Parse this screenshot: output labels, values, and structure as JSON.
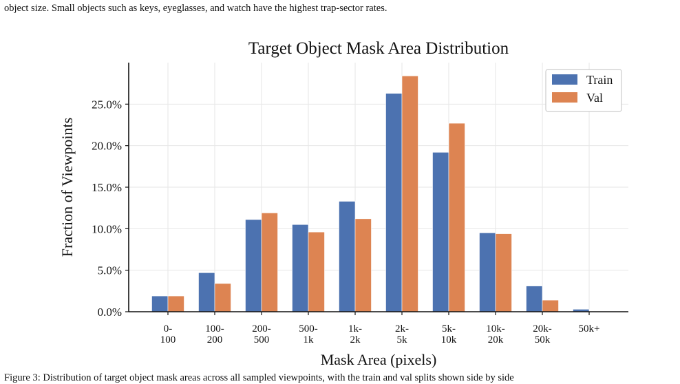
{
  "caption_top": "object size. Small objects such as keys, eyeglasses, and watch have the highest trap-sector rates.",
  "caption_bottom": "Figure 3: Distribution of target object mask areas across all sampled viewpoints, with the train and val splits shown side by side",
  "chart_data": {
    "type": "bar",
    "title": "Target Object Mask Area Distribution",
    "xlabel": "Mask Area (pixels)",
    "ylabel": "Fraction of Viewpoints",
    "categories": [
      [
        "0-",
        "100"
      ],
      [
        "100-",
        "200"
      ],
      [
        "200-",
        "500"
      ],
      [
        "500-",
        "1k"
      ],
      [
        "1k-",
        "2k"
      ],
      [
        "2k-",
        "5k"
      ],
      [
        "5k-",
        "10k"
      ],
      [
        "10k-",
        "20k"
      ],
      [
        "20k-",
        "50k"
      ],
      [
        "50k+"
      ]
    ],
    "series": [
      {
        "name": "Train",
        "color": "#4c72b0",
        "values": [
          1.9,
          4.7,
          11.1,
          10.5,
          13.3,
          26.3,
          19.2,
          9.5,
          3.1,
          0.3
        ]
      },
      {
        "name": "Val",
        "color": "#dd8452",
        "values": [
          1.9,
          3.4,
          11.9,
          9.6,
          11.2,
          28.4,
          22.7,
          9.4,
          1.4,
          0.0
        ]
      }
    ],
    "yticks": [
      "0.0%",
      "5.0%",
      "10.0%",
      "15.0%",
      "20.0%",
      "25.0%"
    ],
    "ylim": [
      0,
      30
    ],
    "grid": true,
    "legend_position": "top-right"
  }
}
